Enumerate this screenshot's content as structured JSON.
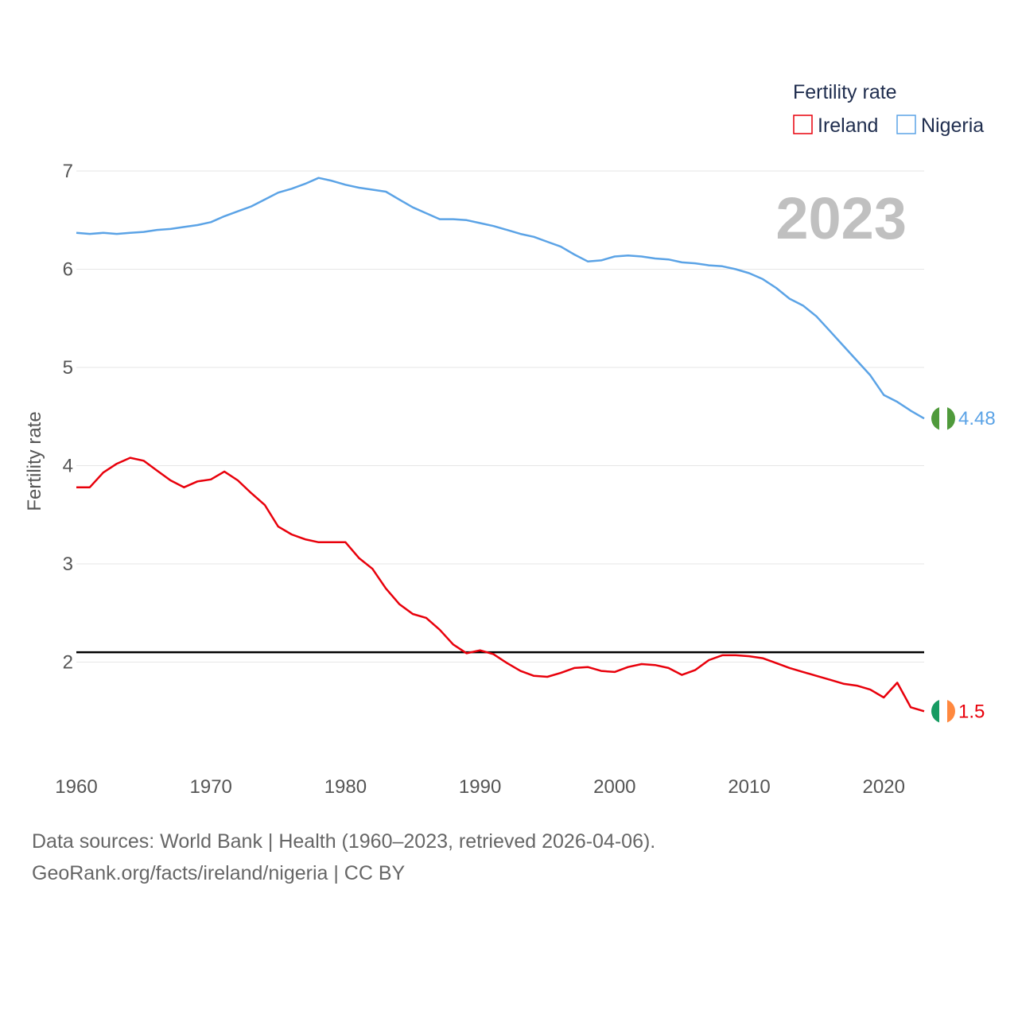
{
  "chart_data": {
    "type": "line",
    "title": "Fertility rate",
    "xlabel": "",
    "ylabel": "Fertility rate",
    "xlim": [
      1960,
      2023
    ],
    "ylim": [
      1.0,
      7.3
    ],
    "x_ticks": [
      1960,
      1970,
      1980,
      1990,
      2000,
      2010,
      2020
    ],
    "y_ticks": [
      2,
      3,
      4,
      5,
      6,
      7
    ],
    "year_label": "2023",
    "reference_line": {
      "value": 2.1,
      "color": "#000000"
    },
    "legend_title": "Fertility rate",
    "legend_position": "top-right",
    "x": [
      1960,
      1961,
      1962,
      1963,
      1964,
      1965,
      1966,
      1967,
      1968,
      1969,
      1970,
      1971,
      1972,
      1973,
      1974,
      1975,
      1976,
      1977,
      1978,
      1979,
      1980,
      1981,
      1982,
      1983,
      1984,
      1985,
      1986,
      1987,
      1988,
      1989,
      1990,
      1991,
      1992,
      1993,
      1994,
      1995,
      1996,
      1997,
      1998,
      1999,
      2000,
      2001,
      2002,
      2003,
      2004,
      2005,
      2006,
      2007,
      2008,
      2009,
      2010,
      2011,
      2012,
      2013,
      2014,
      2015,
      2016,
      2017,
      2018,
      2019,
      2020,
      2021,
      2022,
      2023
    ],
    "series": [
      {
        "name": "Ireland",
        "color": "#e8000b",
        "end_label": "1.5",
        "values": [
          3.78,
          3.78,
          3.93,
          4.02,
          4.08,
          4.05,
          3.95,
          3.85,
          3.78,
          3.84,
          3.86,
          3.94,
          3.85,
          3.72,
          3.6,
          3.38,
          3.3,
          3.25,
          3.22,
          3.22,
          3.22,
          3.06,
          2.95,
          2.75,
          2.59,
          2.49,
          2.45,
          2.33,
          2.18,
          2.09,
          2.12,
          2.08,
          1.99,
          1.91,
          1.86,
          1.85,
          1.89,
          1.94,
          1.95,
          1.91,
          1.9,
          1.95,
          1.98,
          1.97,
          1.94,
          1.87,
          1.92,
          2.02,
          2.07,
          2.07,
          2.06,
          2.04,
          1.99,
          1.94,
          1.9,
          1.86,
          1.82,
          1.78,
          1.76,
          1.72,
          1.64,
          1.79,
          1.54,
          1.5
        ]
      },
      {
        "name": "Nigeria",
        "color": "#5ba3e6",
        "end_label": "4.48",
        "values": [
          6.37,
          6.36,
          6.37,
          6.36,
          6.37,
          6.38,
          6.4,
          6.41,
          6.43,
          6.45,
          6.48,
          6.54,
          6.59,
          6.64,
          6.71,
          6.78,
          6.82,
          6.87,
          6.93,
          6.9,
          6.86,
          6.83,
          6.81,
          6.79,
          6.71,
          6.63,
          6.57,
          6.51,
          6.51,
          6.5,
          6.47,
          6.44,
          6.4,
          6.36,
          6.33,
          6.28,
          6.23,
          6.15,
          6.08,
          6.09,
          6.13,
          6.14,
          6.13,
          6.11,
          6.1,
          6.07,
          6.06,
          6.04,
          6.03,
          6.0,
          5.96,
          5.9,
          5.81,
          5.7,
          5.63,
          5.52,
          5.37,
          5.22,
          5.07,
          4.92,
          4.72,
          4.65,
          4.56,
          4.48
        ]
      }
    ]
  },
  "footer": {
    "line1": "Data sources: World Bank | Health (1960–2023, retrieved 2026-04-06).",
    "line2": "GeoRank.org/facts/ireland/nigeria | CC BY"
  }
}
